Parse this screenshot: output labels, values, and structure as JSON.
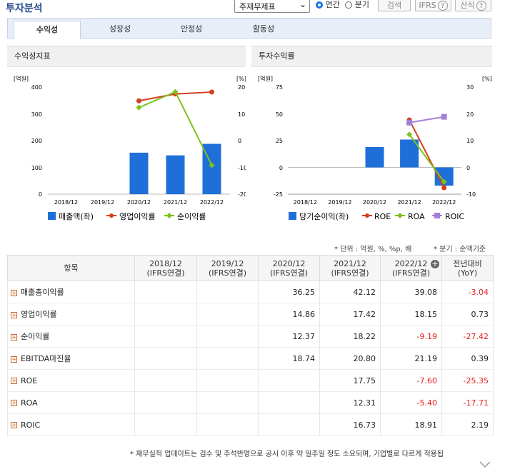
{
  "header": {
    "title": "투자분석",
    "select_value": "주재무제표",
    "radio_annual": "연간",
    "radio_quarter": "분기",
    "search_label": "검색",
    "ifrs_label": "IFRS",
    "calc_label": "산식",
    "help_glyph": "?"
  },
  "tabs": [
    "수익성",
    "성장성",
    "안정성",
    "활동성"
  ],
  "left_chart": {
    "title": "수익성지표",
    "left_unit": "[억원]",
    "right_unit": "[%]",
    "left_ticks": [
      "400",
      "300",
      "200",
      "100",
      "0"
    ],
    "right_ticks": [
      "20",
      "10",
      "0",
      "-10",
      "-20"
    ],
    "legend": [
      "매출액(좌)",
      "영업이익률",
      "순이익률"
    ]
  },
  "right_chart": {
    "title": "투자수익률",
    "left_unit": "[억원]",
    "right_unit": "[%]",
    "left_ticks": [
      "75",
      "50",
      "25",
      "0",
      "-25"
    ],
    "right_ticks": [
      "30",
      "20",
      "10",
      "0",
      "-10"
    ],
    "legend": [
      "당기순이익(좌)",
      "ROE",
      "ROA",
      "ROIC"
    ]
  },
  "chart_data": [
    {
      "type": "bar",
      "categories": [
        "2018/12",
        "2019/12",
        "2020/12",
        "2021/12",
        "2022/12"
      ],
      "series": [
        {
          "name": "매출액(좌)",
          "type": "bar",
          "axis": "left",
          "values": [
            null,
            null,
            155,
            145,
            188
          ]
        },
        {
          "name": "영업이익률",
          "type": "line",
          "axis": "right",
          "values": [
            null,
            null,
            14.86,
            17.42,
            18.15
          ]
        },
        {
          "name": "순이익률",
          "type": "line",
          "axis": "right",
          "values": [
            null,
            null,
            12.37,
            18.22,
            -9.19
          ]
        }
      ],
      "ylim_left": [
        0,
        400
      ],
      "ylim_right": [
        -20,
        20
      ],
      "colors": {
        "bar": "#1f6fd8",
        "op": "#d2401c",
        "net": "#7cc21c"
      }
    },
    {
      "type": "bar",
      "categories": [
        "2018/12",
        "2019/12",
        "2020/12",
        "2021/12",
        "2022/12"
      ],
      "series": [
        {
          "name": "당기순이익(좌)",
          "type": "bar",
          "axis": "left",
          "values": [
            null,
            null,
            19,
            26,
            -17
          ]
        },
        {
          "name": "ROE",
          "type": "line",
          "axis": "right",
          "values": [
            null,
            null,
            null,
            17.75,
            -7.6
          ]
        },
        {
          "name": "ROA",
          "type": "line",
          "axis": "right",
          "values": [
            null,
            null,
            null,
            12.31,
            -5.4
          ]
        },
        {
          "name": "ROIC",
          "type": "line",
          "axis": "right",
          "values": [
            null,
            null,
            null,
            16.73,
            18.91
          ]
        }
      ],
      "ylim_left": [
        -25,
        75
      ],
      "ylim_right": [
        -10,
        30
      ],
      "colors": {
        "bar": "#1f6fd8",
        "roe": "#d2401c",
        "roa": "#7cc21c",
        "roic": "#a57fd6"
      }
    }
  ],
  "notes": {
    "unit": "* 단위 : 억원, %, %p, 배",
    "quarter": "* 분기 : 순액기준",
    "footer": "* 재무실적 업데이트는 검수 및 주석반영으로 공시 이후 약 일주일 정도 소요되며, 기업별로 다르게 적용됩"
  },
  "table": {
    "headers": [
      {
        "top": "항목",
        "sub": ""
      },
      {
        "top": "2018/12",
        "sub": "(IFRS연결)"
      },
      {
        "top": "2019/12",
        "sub": "(IFRS연결)"
      },
      {
        "top": "2020/12",
        "sub": "(IFRS연결)"
      },
      {
        "top": "2021/12",
        "sub": "(IFRS연결)"
      },
      {
        "top": "2022/12",
        "sub": "(IFRS연결)"
      },
      {
        "top": "전년대비",
        "sub": "(YoY)"
      }
    ],
    "rows": [
      {
        "label": "매출총이익률",
        "values": [
          "",
          "",
          "36.25",
          "42.12",
          "39.08",
          "-3.04"
        ]
      },
      {
        "label": "영업이익률",
        "values": [
          "",
          "",
          "14.86",
          "17.42",
          "18.15",
          "0.73"
        ]
      },
      {
        "label": "순이익률",
        "values": [
          "",
          "",
          "12.37",
          "18.22",
          "-9.19",
          "-27.42"
        ]
      },
      {
        "label": "EBITDA마진율",
        "values": [
          "",
          "",
          "18.74",
          "20.80",
          "21.19",
          "0.39"
        ]
      },
      {
        "label": "ROE",
        "values": [
          "",
          "",
          "",
          "17.75",
          "-7.60",
          "-25.35"
        ]
      },
      {
        "label": "ROA",
        "values": [
          "",
          "",
          "",
          "12.31",
          "-5.40",
          "-17.71"
        ]
      },
      {
        "label": "ROIC",
        "values": [
          "",
          "",
          "",
          "16.73",
          "18.91",
          "2.19"
        ]
      }
    ]
  }
}
